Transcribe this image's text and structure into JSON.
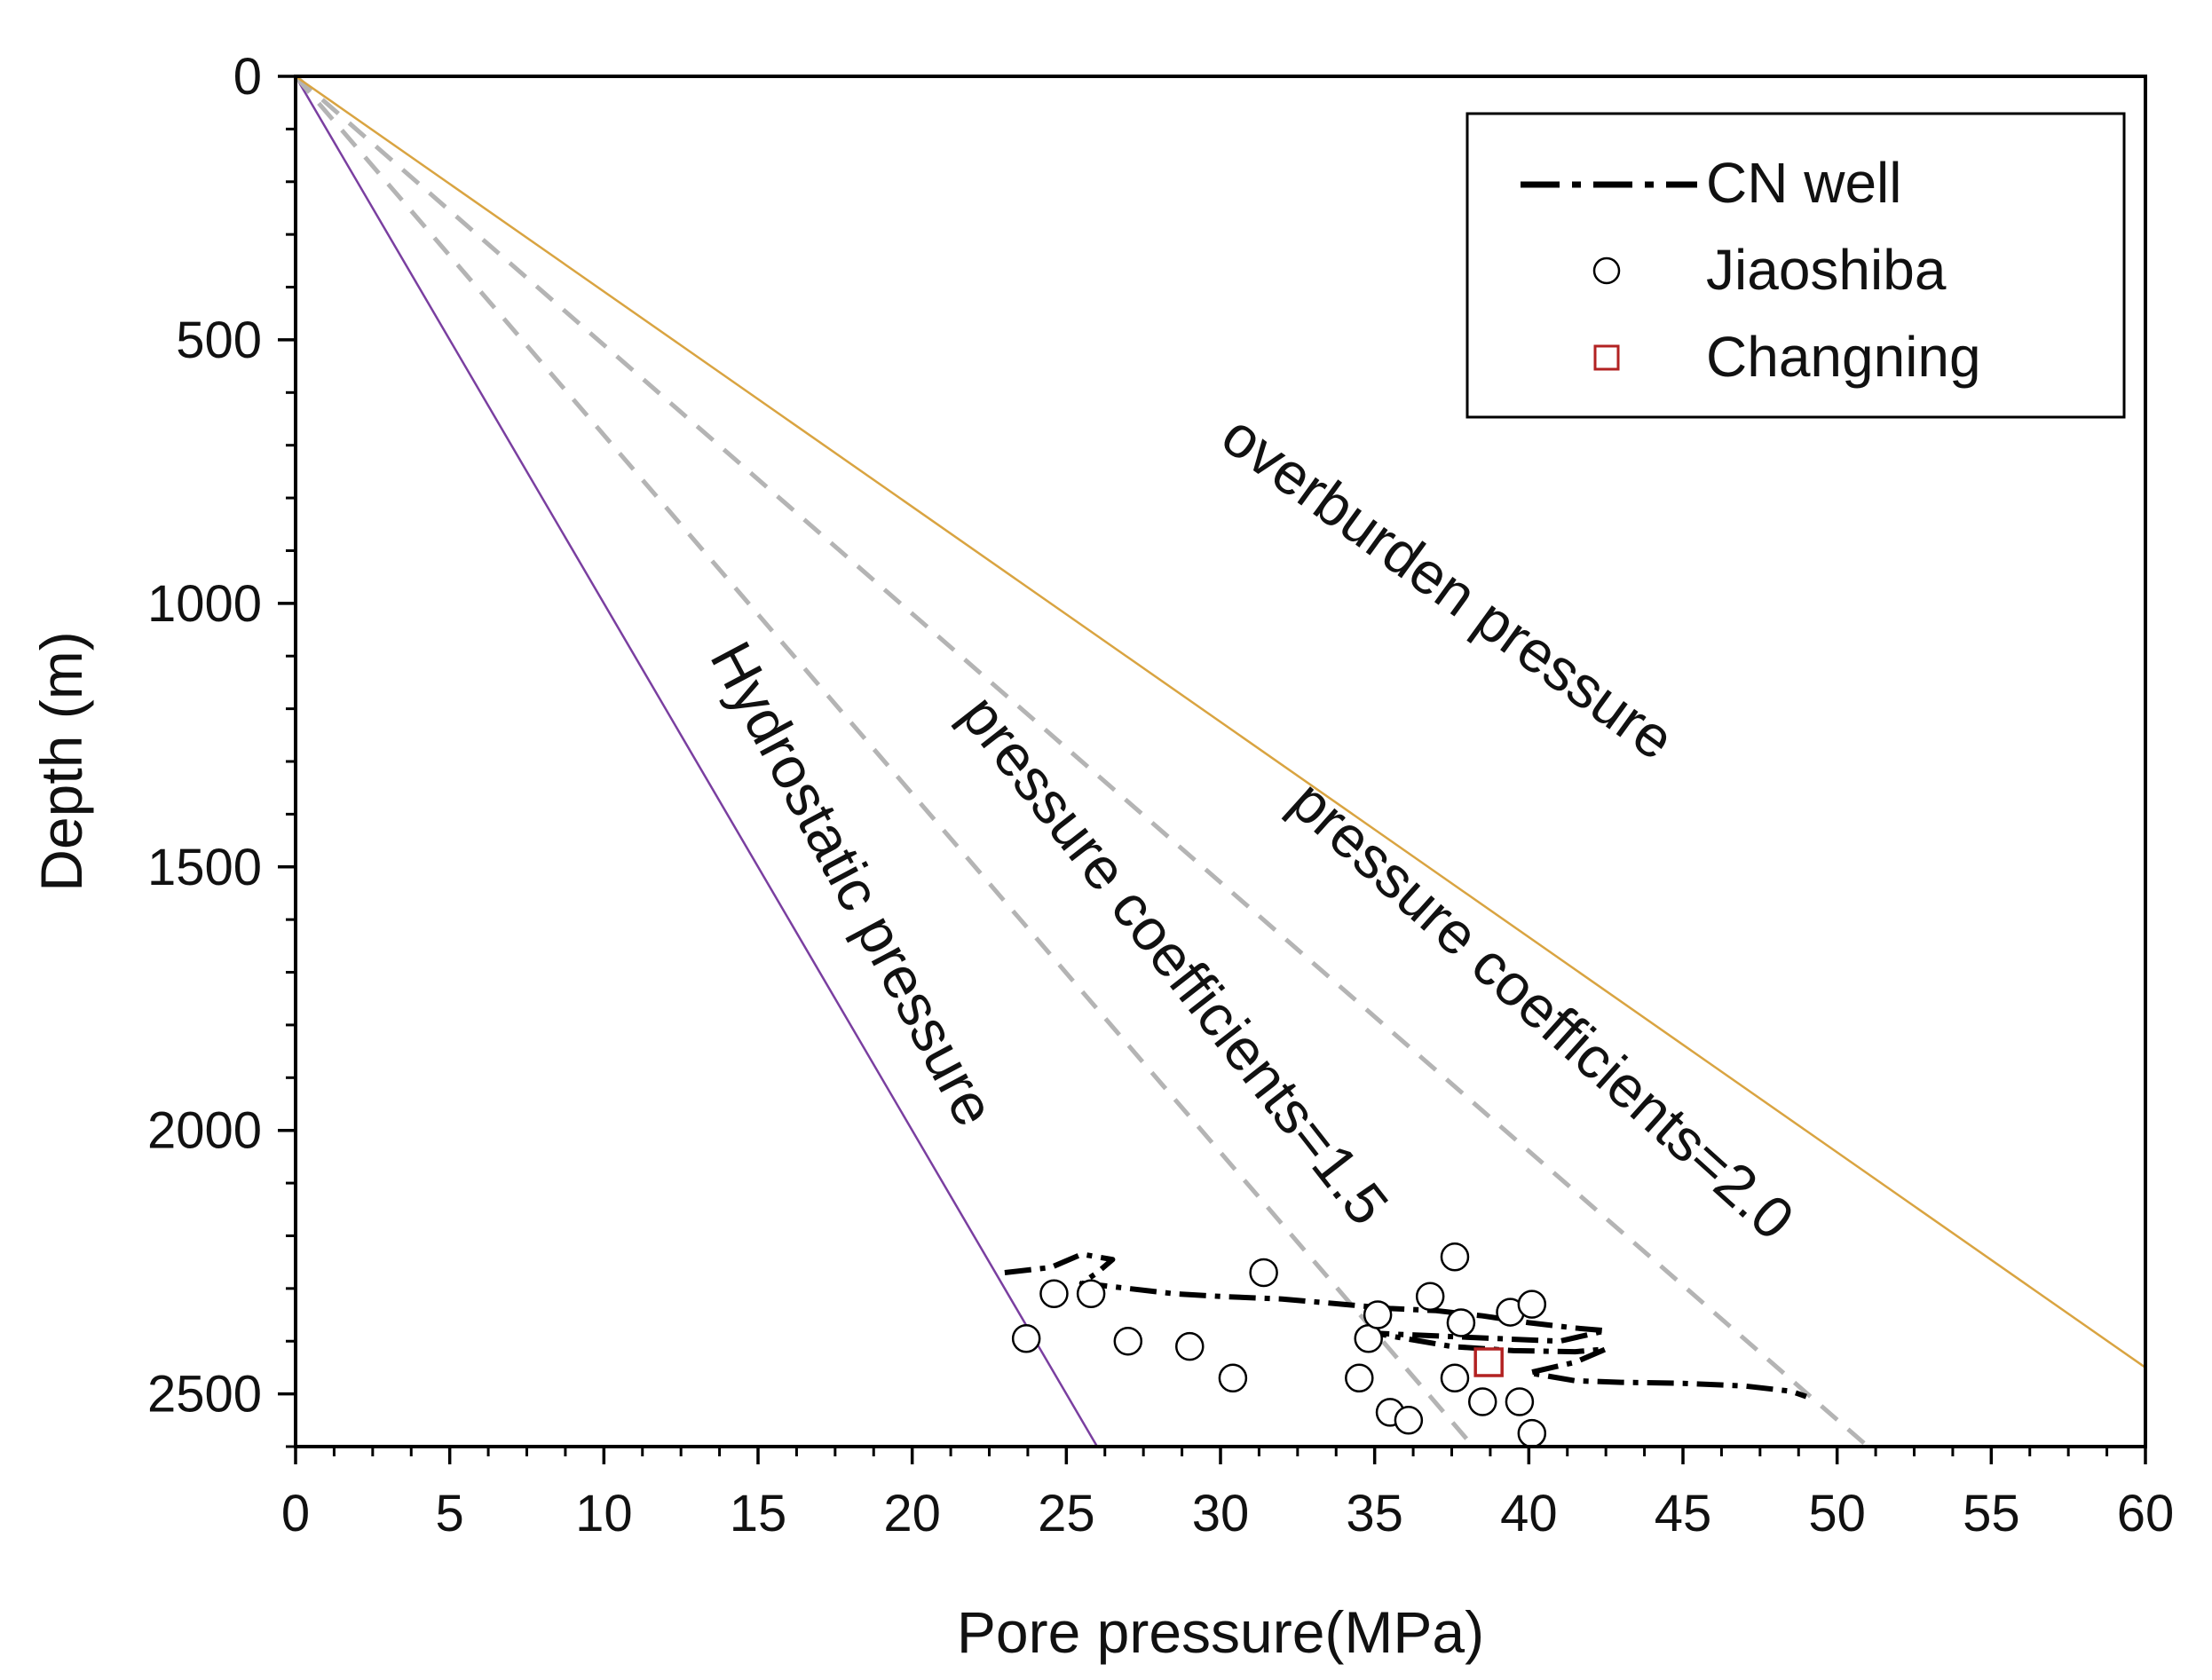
{
  "chart_data": {
    "type": "scatter",
    "title": "",
    "xlabel": "Pore pressure(MPa)",
    "ylabel": "Depth (m)",
    "xlim": [
      0,
      60
    ],
    "ylim": [
      2600,
      0
    ],
    "x_ticks": [
      0,
      5,
      10,
      15,
      20,
      25,
      30,
      35,
      40,
      45,
      50,
      55,
      60
    ],
    "y_ticks": [
      0,
      500,
      1000,
      1500,
      2000,
      2500
    ],
    "x_tick_labels": [
      "0",
      "5",
      "10",
      "15",
      "20",
      "25",
      "30",
      "35",
      "40",
      "45",
      "50",
      "55",
      "60"
    ],
    "y_tick_labels": [
      "0",
      "500",
      "1000",
      "1500",
      "2000",
      "2500"
    ],
    "grid": false,
    "legend_position": "top-right",
    "legend": [
      "CN well",
      "Jiaoshiba",
      "Changning"
    ],
    "reference_lines": [
      {
        "name": "Hydrostatic pressure",
        "points": [
          [
            0,
            0
          ],
          [
            26,
            2600
          ]
        ],
        "color": "#7a3fa0",
        "style": "solid"
      },
      {
        "name": "pressure coefficients=1.5",
        "points": [
          [
            0,
            0
          ],
          [
            38.2,
            2600
          ]
        ],
        "color": "#b4b4b4",
        "style": "dashed"
      },
      {
        "name": "pressure coefficients=2.0",
        "points": [
          [
            0,
            0
          ],
          [
            51,
            2600
          ]
        ],
        "color": "#b4b4b4",
        "style": "dashed"
      },
      {
        "name": "overburden pressure",
        "points": [
          [
            0,
            0
          ],
          [
            60,
            2450
          ]
        ],
        "color": "#d9a441",
        "style": "solid"
      }
    ],
    "series": [
      {
        "name": "CN well",
        "type": "line",
        "style": "dash-dot",
        "color": "#000000",
        "points": [
          [
            23,
            2270
          ],
          [
            24.5,
            2260
          ],
          [
            25.5,
            2235
          ],
          [
            26.5,
            2245
          ],
          [
            26,
            2270
          ],
          [
            25.5,
            2290
          ],
          [
            27,
            2300
          ],
          [
            28.5,
            2310
          ],
          [
            30,
            2315
          ],
          [
            32,
            2320
          ],
          [
            34,
            2330
          ],
          [
            35.5,
            2338
          ],
          [
            37,
            2342
          ],
          [
            38.5,
            2352
          ],
          [
            40,
            2365
          ],
          [
            41.5,
            2375
          ],
          [
            42.5,
            2380
          ],
          [
            41,
            2400
          ],
          [
            39,
            2395
          ],
          [
            37,
            2390
          ],
          [
            35,
            2385
          ],
          [
            37.5,
            2410
          ],
          [
            39.5,
            2418
          ],
          [
            41.5,
            2420
          ],
          [
            42.5,
            2415
          ],
          [
            41.5,
            2440
          ],
          [
            40,
            2460
          ],
          [
            41.5,
            2475
          ],
          [
            43,
            2478
          ],
          [
            45,
            2480
          ],
          [
            47,
            2485
          ],
          [
            48.5,
            2495
          ],
          [
            49,
            2505
          ]
        ]
      },
      {
        "name": "Jiaoshiba",
        "type": "scatter",
        "marker": "circle",
        "color": "#000000",
        "points": [
          [
            23.7,
            2395
          ],
          [
            24.6,
            2310
          ],
          [
            25.8,
            2310
          ],
          [
            27,
            2400
          ],
          [
            29,
            2410
          ],
          [
            30.4,
            2470
          ],
          [
            31.4,
            2270
          ],
          [
            34.5,
            2470
          ],
          [
            34.8,
            2395
          ],
          [
            35.1,
            2350
          ],
          [
            35.5,
            2535
          ],
          [
            36.1,
            2550
          ],
          [
            36.8,
            2315
          ],
          [
            37.6,
            2240
          ],
          [
            37.6,
            2470
          ],
          [
            37.8,
            2365
          ],
          [
            38.5,
            2515
          ],
          [
            39.4,
            2345
          ],
          [
            39.7,
            2515
          ],
          [
            40.1,
            2330
          ],
          [
            40.1,
            2575
          ]
        ]
      },
      {
        "name": "Changning",
        "type": "scatter",
        "marker": "square",
        "color": "#b22222",
        "points": [
          [
            38.7,
            2440
          ]
        ]
      }
    ],
    "annotations": [
      {
        "text": "overburden pressure",
        "near_x": 37,
        "near_y": 1000,
        "angle_degrees": 36
      },
      {
        "text": "pressure coefficients=1.5",
        "near_x": 28,
        "near_y": 1700,
        "angle_degrees": 52
      },
      {
        "text": "pressure coefficients=2.0",
        "near_x": 40,
        "near_y": 1800,
        "angle_degrees": 42
      },
      {
        "text": "Hydrostatic pressure",
        "near_x": 17.5,
        "near_y": 1550,
        "angle_degrees": 62
      }
    ]
  }
}
